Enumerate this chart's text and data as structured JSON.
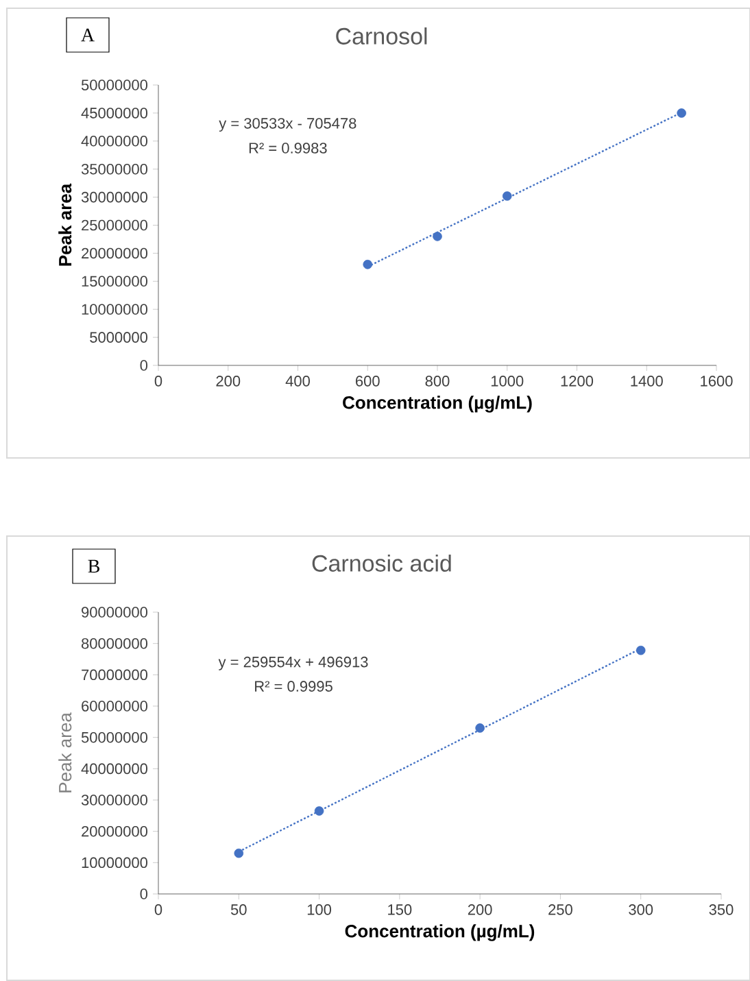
{
  "chart_data": [
    {
      "type": "scatter",
      "title": "Carnosol",
      "xlabel": "Concentration (µg/mL)",
      "ylabel": "Peak area",
      "xlim": [
        0,
        1600
      ],
      "xticks": [
        0,
        200,
        400,
        600,
        800,
        1000,
        1200,
        1400,
        1600
      ],
      "ylim": [
        0,
        50000000
      ],
      "yticks": [
        0,
        5000000,
        10000000,
        15000000,
        20000000,
        25000000,
        30000000,
        35000000,
        40000000,
        45000000,
        50000000
      ],
      "series": [
        {
          "color": "#4472c4",
          "marker": "circle",
          "x": [
            600,
            800,
            1000,
            1500
          ],
          "values": [
            18000000,
            23000000,
            30200000,
            45000000
          ]
        },
        {
          "type": "line",
          "color": "#4472c4",
          "line_style": "dotted",
          "x": [
            600,
            1500
          ],
          "values": [
            17600000,
            45100000
          ]
        }
      ],
      "annotations": [
        "A",
        "y = 30533x - 705478",
        "R² = 0.9983"
      ]
    },
    {
      "type": "scatter",
      "title": "Carnosic acid",
      "xlabel": "Concentration (µg/mL)",
      "ylabel": "Peak area",
      "xlim": [
        0,
        350
      ],
      "xticks": [
        0,
        50,
        100,
        150,
        200,
        250,
        300,
        350
      ],
      "ylim": [
        0,
        90000000
      ],
      "yticks": [
        0,
        10000000,
        20000000,
        30000000,
        40000000,
        50000000,
        60000000,
        70000000,
        80000000,
        90000000
      ],
      "series": [
        {
          "color": "#4472c4",
          "marker": "circle",
          "x": [
            50,
            100,
            200,
            300
          ],
          "values": [
            13000000,
            26500000,
            53000000,
            77800000
          ]
        },
        {
          "type": "line",
          "color": "#4472c4",
          "line_style": "dotted",
          "x": [
            50,
            300
          ],
          "values": [
            13500000,
            78400000
          ]
        }
      ],
      "annotations": [
        "B",
        "y = 259554x + 496913",
        "R² = 0.9995"
      ]
    }
  ]
}
